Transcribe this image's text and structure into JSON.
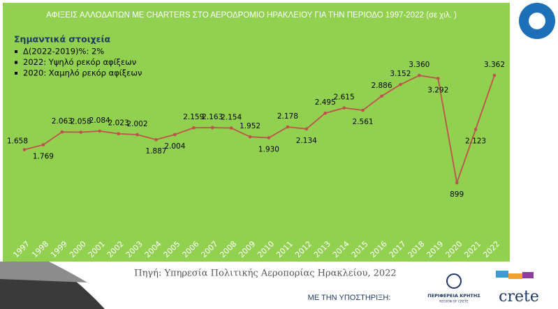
{
  "chart_data": {
    "type": "line",
    "title": "ΑΦΙΞΕΙΣ ΑΛΛΟΔΑΠΩΝ ΜΕ CHARTERS ΣΤΟ ΑΕΡΟΔΡΟΜΙΟ ΗΡΑΚΛΕΙΟΥ ΓΙΑ ΤΗΝ ΠΕΡΙΟΔΟ 1997-2022 (σε χιλ. )",
    "notes_title": "Σημαντικά στοιχεία",
    "notes": [
      "Δ(2022-2019)%:  2%",
      "2022:  Υψηλό ρεκόρ αφίξεων",
      "2020:  Χαμηλό ρεκόρ αφίξεων"
    ],
    "categories": [
      "1997",
      "1998",
      "1999",
      "2000",
      "2001",
      "2002",
      "2003",
      "2004",
      "2005",
      "2006",
      "2007",
      "2008",
      "2009",
      "2010",
      "2011",
      "2012",
      "2013",
      "2014",
      "2015",
      "2016",
      "2017",
      "2018",
      "2019",
      "2020",
      "2021",
      "2022"
    ],
    "values": [
      1658,
      1769,
      2063,
      2058,
      2084,
      2023,
      2002,
      1887,
      2004,
      2159,
      2163,
      2154,
      1952,
      1930,
      2178,
      2134,
      2495,
      2615,
      2561,
      2886,
      3152,
      3360,
      3292,
      899,
      2123,
      3362
    ],
    "value_labels": [
      "1.658",
      "1.769",
      "2.063",
      "2.058",
      "2.084",
      "2.023",
      "2.002",
      "1.887",
      "2.004",
      "2.159",
      "2.163",
      "2.154",
      "1.952",
      "1.930",
      "2.178",
      "2.134",
      "2.495",
      "2.615",
      "2.561",
      "2.886",
      "3.152",
      "3.360",
      "3.292",
      "899",
      "2.123",
      "3.362"
    ],
    "color": "#c0504d",
    "background": "#92d050",
    "source": "Πηγή: Υπηρεσία Πολιτικής Αεροπορίας Ηρακλείου, 2022"
  },
  "footer": {
    "support": "ΜΕ ΤΗΝ ΥΠΟΣΤΗΡΙΞΗ:",
    "region_logo": "ΠΕΡΙΦΕΡΕΙΑ ΚΡΗΤΗΣ",
    "region_logo_en": "REGION OF CRETE",
    "crete_logo": "crete"
  }
}
